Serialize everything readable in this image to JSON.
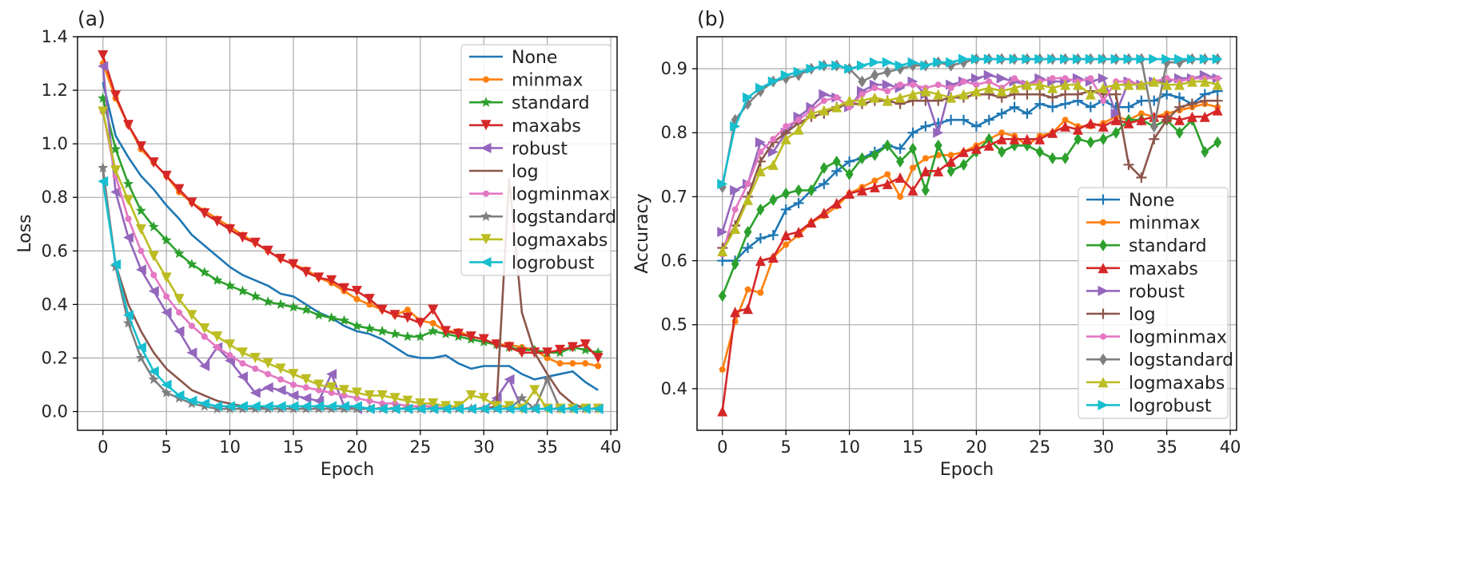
{
  "chart_data": [
    {
      "type": "line",
      "panel_label": "(a)",
      "xlabel": "Epoch",
      "ylabel": "Loss",
      "xlim": [
        -2,
        40.5
      ],
      "ylim": [
        -0.07,
        1.4
      ],
      "xticks": [
        0,
        5,
        10,
        15,
        20,
        25,
        30,
        35,
        40
      ],
      "yticks": [
        0.0,
        0.2,
        0.4,
        0.6,
        0.8,
        1.0,
        1.2,
        1.4
      ],
      "ytick_labels": [
        "0.0",
        "0.2",
        "0.4",
        "0.6",
        "0.8",
        "1.0",
        "1.2",
        "1.4"
      ],
      "grid": true,
      "legend_loc": "upper-right",
      "series": [
        {
          "name": "None",
          "color": "#1f77b4",
          "marker": "none",
          "values": [
            1.23,
            1.03,
            0.95,
            0.88,
            0.83,
            0.77,
            0.72,
            0.66,
            0.62,
            0.58,
            0.54,
            0.51,
            0.49,
            0.47,
            0.44,
            0.43,
            0.4,
            0.37,
            0.35,
            0.32,
            0.3,
            0.29,
            0.27,
            0.24,
            0.21,
            0.2,
            0.2,
            0.21,
            0.18,
            0.16,
            0.17,
            0.17,
            0.17,
            0.14,
            0.12,
            0.13,
            0.14,
            0.15,
            0.11,
            0.08
          ]
        },
        {
          "name": "minmax",
          "color": "#ff7f0e",
          "marker": "dot",
          "values": [
            1.3,
            1.17,
            1.07,
            0.98,
            0.93,
            0.88,
            0.82,
            0.78,
            0.75,
            0.72,
            0.69,
            0.66,
            0.63,
            0.6,
            0.57,
            0.55,
            0.53,
            0.5,
            0.48,
            0.45,
            0.42,
            0.4,
            0.38,
            0.36,
            0.38,
            0.34,
            0.33,
            0.3,
            0.3,
            0.28,
            0.27,
            0.25,
            0.25,
            0.24,
            0.23,
            0.2,
            0.18,
            0.18,
            0.18,
            0.17
          ]
        },
        {
          "name": "standard",
          "color": "#2ca02c",
          "marker": "star",
          "values": [
            1.17,
            0.98,
            0.85,
            0.75,
            0.69,
            0.64,
            0.59,
            0.55,
            0.52,
            0.49,
            0.47,
            0.45,
            0.43,
            0.41,
            0.4,
            0.39,
            0.38,
            0.36,
            0.35,
            0.34,
            0.32,
            0.31,
            0.3,
            0.29,
            0.28,
            0.28,
            0.3,
            0.29,
            0.28,
            0.27,
            0.26,
            0.25,
            0.24,
            0.23,
            0.23,
            0.22,
            0.22,
            0.24,
            0.23,
            0.22
          ]
        },
        {
          "name": "maxabs",
          "color": "#d62728",
          "marker": "tri_down",
          "values": [
            1.33,
            1.18,
            1.07,
            0.99,
            0.93,
            0.88,
            0.83,
            0.78,
            0.74,
            0.71,
            0.68,
            0.65,
            0.63,
            0.6,
            0.57,
            0.55,
            0.52,
            0.5,
            0.49,
            0.46,
            0.45,
            0.42,
            0.38,
            0.36,
            0.35,
            0.33,
            0.38,
            0.3,
            0.29,
            0.28,
            0.27,
            0.25,
            0.24,
            0.22,
            0.22,
            0.22,
            0.23,
            0.24,
            0.25,
            0.2
          ]
        },
        {
          "name": "robust",
          "color": "#9467bd",
          "marker": "tri_left",
          "values": [
            1.29,
            0.82,
            0.65,
            0.53,
            0.45,
            0.37,
            0.3,
            0.22,
            0.17,
            0.24,
            0.19,
            0.13,
            0.07,
            0.09,
            0.08,
            0.06,
            0.05,
            0.04,
            0.14,
            0.02,
            0.01,
            0.01,
            0.01,
            0.01,
            0.01,
            0.01,
            0.01,
            0.01,
            0.01,
            0.01,
            0.01,
            0.05,
            0.12,
            0.01,
            0.01,
            0.01,
            0.01,
            0.01,
            0.01,
            0.01
          ]
        },
        {
          "name": "log",
          "color": "#8c564b",
          "marker": "none",
          "values": [
            0.9,
            0.55,
            0.4,
            0.3,
            0.22,
            0.16,
            0.12,
            0.08,
            0.06,
            0.04,
            0.03,
            0.02,
            0.02,
            0.01,
            0.01,
            0.01,
            0.01,
            0.01,
            0.01,
            0.01,
            0.01,
            0.01,
            0.01,
            0.01,
            0.01,
            0.01,
            0.01,
            0.01,
            0.01,
            0.01,
            0.01,
            0.02,
            0.87,
            0.37,
            0.22,
            0.14,
            0.07,
            0.03,
            0.01,
            0.01
          ]
        },
        {
          "name": "logminmax",
          "color": "#e377c2",
          "marker": "dot",
          "values": [
            1.12,
            0.88,
            0.72,
            0.6,
            0.51,
            0.43,
            0.37,
            0.32,
            0.28,
            0.24,
            0.21,
            0.18,
            0.16,
            0.14,
            0.12,
            0.1,
            0.09,
            0.08,
            0.07,
            0.06,
            0.05,
            0.04,
            0.03,
            0.03,
            0.02,
            0.02,
            0.02,
            0.01,
            0.01,
            0.01,
            0.01,
            0.01,
            0.01,
            0.01,
            0.01,
            0.01,
            0.01,
            0.01,
            0.01,
            0.01
          ]
        },
        {
          "name": "logstandard",
          "color": "#7f7f7f",
          "marker": "star",
          "values": [
            0.91,
            0.54,
            0.33,
            0.2,
            0.12,
            0.07,
            0.05,
            0.03,
            0.02,
            0.01,
            0.01,
            0.01,
            0.01,
            0.01,
            0.01,
            0.01,
            0.01,
            0.01,
            0.01,
            0.01,
            0.01,
            0.01,
            0.01,
            0.01,
            0.01,
            0.01,
            0.01,
            0.01,
            0.01,
            0.01,
            0.01,
            0.01,
            0.01,
            0.05,
            0.01,
            0.12,
            0.01,
            0.01,
            0.01,
            0.01
          ]
        },
        {
          "name": "logmaxabs",
          "color": "#bcbd22",
          "marker": "tri_down",
          "values": [
            1.12,
            0.9,
            0.79,
            0.68,
            0.58,
            0.5,
            0.42,
            0.36,
            0.31,
            0.28,
            0.25,
            0.22,
            0.2,
            0.18,
            0.16,
            0.14,
            0.12,
            0.1,
            0.09,
            0.08,
            0.07,
            0.06,
            0.06,
            0.05,
            0.04,
            0.03,
            0.03,
            0.02,
            0.02,
            0.06,
            0.05,
            0.02,
            0.02,
            0.01,
            0.08,
            0.01,
            0.01,
            0.01,
            0.01,
            0.01
          ]
        },
        {
          "name": "logrobust",
          "color": "#17becf",
          "marker": "tri_left",
          "values": [
            0.86,
            0.55,
            0.36,
            0.24,
            0.15,
            0.1,
            0.06,
            0.04,
            0.03,
            0.02,
            0.02,
            0.02,
            0.02,
            0.02,
            0.02,
            0.02,
            0.02,
            0.02,
            0.02,
            0.02,
            0.02,
            0.01,
            0.01,
            0.01,
            0.01,
            0.01,
            0.01,
            0.01,
            0.01,
            0.01,
            0.01,
            0.01,
            0.01,
            0.01,
            0.01,
            0.01,
            0.01,
            0.01,
            0.01,
            0.01
          ]
        }
      ]
    },
    {
      "type": "line",
      "panel_label": "(b)",
      "xlabel": "Epoch",
      "ylabel": "Accuracy",
      "xlim": [
        -2,
        40.5
      ],
      "ylim": [
        0.335,
        0.95
      ],
      "xticks": [
        0,
        5,
        10,
        15,
        20,
        25,
        30,
        35,
        40
      ],
      "yticks": [
        0.4,
        0.5,
        0.6,
        0.7,
        0.8,
        0.9
      ],
      "ytick_labels": [
        "0.4",
        "0.5",
        "0.6",
        "0.7",
        "0.8",
        "0.9"
      ],
      "grid": true,
      "legend_loc": "lower-right",
      "series": [
        {
          "name": "None",
          "color": "#1f77b4",
          "marker": "plus",
          "values": [
            0.6,
            0.6,
            0.62,
            0.635,
            0.64,
            0.68,
            0.69,
            0.71,
            0.72,
            0.74,
            0.755,
            0.76,
            0.77,
            0.78,
            0.775,
            0.8,
            0.81,
            0.815,
            0.82,
            0.82,
            0.81,
            0.82,
            0.83,
            0.84,
            0.83,
            0.845,
            0.84,
            0.845,
            0.85,
            0.84,
            0.85,
            0.84,
            0.84,
            0.85,
            0.85,
            0.86,
            0.855,
            0.845,
            0.86,
            0.865
          ]
        },
        {
          "name": "minmax",
          "color": "#ff7f0e",
          "marker": "dot",
          "values": [
            0.43,
            0.505,
            0.555,
            0.55,
            0.605,
            0.625,
            0.64,
            0.66,
            0.67,
            0.685,
            0.705,
            0.715,
            0.725,
            0.735,
            0.7,
            0.745,
            0.76,
            0.765,
            0.765,
            0.77,
            0.78,
            0.79,
            0.8,
            0.795,
            0.78,
            0.795,
            0.8,
            0.82,
            0.81,
            0.81,
            0.815,
            0.825,
            0.82,
            0.83,
            0.825,
            0.83,
            0.835,
            0.84,
            0.845,
            0.84
          ]
        },
        {
          "name": "standard",
          "color": "#2ca02c",
          "marker": "diamond",
          "values": [
            0.545,
            0.595,
            0.645,
            0.68,
            0.695,
            0.705,
            0.71,
            0.71,
            0.745,
            0.755,
            0.735,
            0.76,
            0.765,
            0.78,
            0.755,
            0.775,
            0.71,
            0.78,
            0.74,
            0.75,
            0.77,
            0.79,
            0.77,
            0.78,
            0.78,
            0.77,
            0.76,
            0.76,
            0.79,
            0.785,
            0.79,
            0.8,
            0.82,
            0.82,
            0.81,
            0.82,
            0.8,
            0.82,
            0.77,
            0.785
          ]
        },
        {
          "name": "maxabs",
          "color": "#d62728",
          "marker": "tri_up",
          "values": [
            0.365,
            0.52,
            0.525,
            0.6,
            0.605,
            0.64,
            0.645,
            0.66,
            0.675,
            0.69,
            0.705,
            0.71,
            0.715,
            0.72,
            0.73,
            0.71,
            0.74,
            0.74,
            0.755,
            0.77,
            0.775,
            0.78,
            0.79,
            0.79,
            0.79,
            0.79,
            0.8,
            0.81,
            0.805,
            0.815,
            0.81,
            0.82,
            0.815,
            0.82,
            0.825,
            0.825,
            0.82,
            0.825,
            0.825,
            0.835
          ]
        },
        {
          "name": "robust",
          "color": "#9467bd",
          "marker": "tri_right",
          "values": [
            0.645,
            0.71,
            0.72,
            0.785,
            0.77,
            0.8,
            0.825,
            0.84,
            0.86,
            0.855,
            0.84,
            0.865,
            0.875,
            0.875,
            0.87,
            0.88,
            0.86,
            0.8,
            0.875,
            0.88,
            0.885,
            0.89,
            0.885,
            0.88,
            0.875,
            0.885,
            0.88,
            0.88,
            0.885,
            0.88,
            0.885,
            0.83,
            0.88,
            0.875,
            0.88,
            0.88,
            0.885,
            0.885,
            0.89,
            0.885
          ]
        },
        {
          "name": "log",
          "color": "#8c564b",
          "marker": "plus",
          "values": [
            0.62,
            0.655,
            0.7,
            0.755,
            0.785,
            0.8,
            0.815,
            0.825,
            0.83,
            0.84,
            0.845,
            0.845,
            0.85,
            0.85,
            0.845,
            0.85,
            0.85,
            0.85,
            0.855,
            0.855,
            0.86,
            0.86,
            0.855,
            0.86,
            0.86,
            0.86,
            0.855,
            0.86,
            0.86,
            0.865,
            0.86,
            0.86,
            0.75,
            0.73,
            0.79,
            0.82,
            0.84,
            0.845,
            0.85,
            0.85
          ]
        },
        {
          "name": "logminmax",
          "color": "#e377c2",
          "marker": "dot",
          "values": [
            0.61,
            0.68,
            0.72,
            0.77,
            0.79,
            0.81,
            0.82,
            0.835,
            0.85,
            0.855,
            0.84,
            0.86,
            0.87,
            0.865,
            0.875,
            0.875,
            0.87,
            0.875,
            0.87,
            0.88,
            0.875,
            0.88,
            0.87,
            0.885,
            0.875,
            0.88,
            0.885,
            0.885,
            0.88,
            0.885,
            0.85,
            0.88,
            0.88,
            0.875,
            0.88,
            0.885,
            0.88,
            0.885,
            0.885,
            0.885
          ]
        },
        {
          "name": "logstandard",
          "color": "#7f7f7f",
          "marker": "diamond",
          "values": [
            0.715,
            0.82,
            0.845,
            0.865,
            0.88,
            0.885,
            0.89,
            0.9,
            0.905,
            0.905,
            0.9,
            0.88,
            0.89,
            0.895,
            0.9,
            0.905,
            0.905,
            0.91,
            0.905,
            0.91,
            0.915,
            0.915,
            0.915,
            0.915,
            0.915,
            0.915,
            0.915,
            0.915,
            0.915,
            0.915,
            0.915,
            0.915,
            0.915,
            0.915,
            0.81,
            0.91,
            0.91,
            0.915,
            0.915,
            0.915
          ]
        },
        {
          "name": "logmaxabs",
          "color": "#bcbd22",
          "marker": "tri_up",
          "values": [
            0.615,
            0.65,
            0.695,
            0.74,
            0.75,
            0.79,
            0.805,
            0.83,
            0.835,
            0.84,
            0.85,
            0.85,
            0.855,
            0.85,
            0.855,
            0.86,
            0.865,
            0.86,
            0.855,
            0.86,
            0.865,
            0.87,
            0.865,
            0.87,
            0.875,
            0.875,
            0.87,
            0.875,
            0.875,
            0.86,
            0.87,
            0.875,
            0.875,
            0.875,
            0.88,
            0.875,
            0.875,
            0.88,
            0.88,
            0.875
          ]
        },
        {
          "name": "logrobust",
          "color": "#17becf",
          "marker": "tri_right",
          "values": [
            0.72,
            0.81,
            0.855,
            0.87,
            0.88,
            0.89,
            0.895,
            0.9,
            0.905,
            0.905,
            0.9,
            0.905,
            0.91,
            0.91,
            0.905,
            0.91,
            0.905,
            0.91,
            0.91,
            0.915,
            0.915,
            0.915,
            0.915,
            0.915,
            0.915,
            0.915,
            0.915,
            0.915,
            0.915,
            0.915,
            0.915,
            0.915,
            0.915,
            0.915,
            0.915,
            0.915,
            0.915,
            0.915,
            0.915,
            0.915
          ]
        }
      ]
    }
  ]
}
